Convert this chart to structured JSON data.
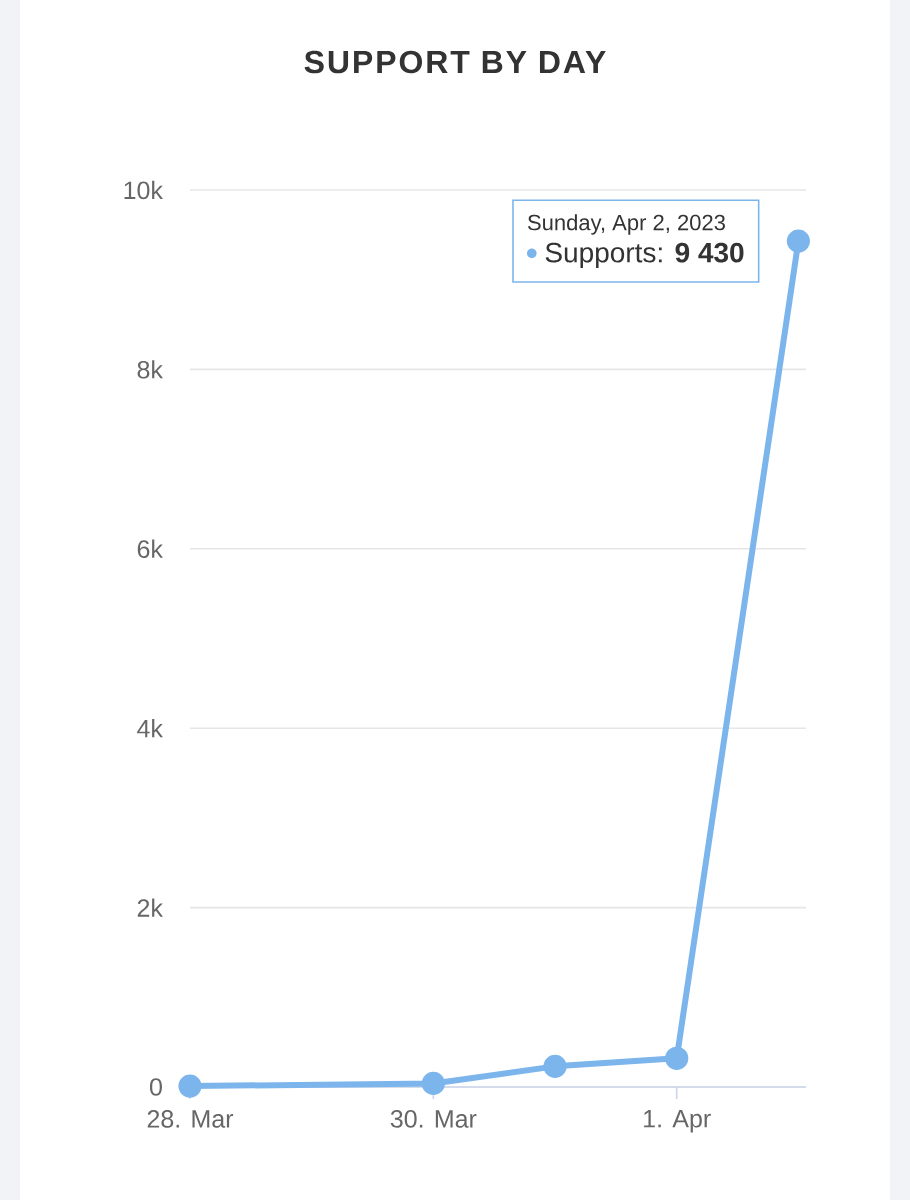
{
  "chart_data": {
    "type": "line",
    "title": "SUPPORT BY DAY",
    "x": [
      "2023-03-28",
      "2023-03-30",
      "2023-03-31",
      "2023-04-01",
      "2023-04-02"
    ],
    "series": [
      {
        "color": "#7cb5ec",
        "values": [
          10,
          40,
          230,
          320,
          9430
        ]
      }
    ],
    "xlim": [
      "2023-03-28",
      "2023-04-02T01:30"
    ],
    "xticks": [
      {
        "value": "2023-03-28",
        "label": "28. Mar"
      },
      {
        "value": "2023-03-30",
        "label": "30. Mar"
      },
      {
        "value": "2023-04-01",
        "label": "1. Apr"
      }
    ],
    "ylim": [
      0,
      10000
    ],
    "yticks": [
      {
        "value": 0,
        "label": "0"
      },
      {
        "value": 2000,
        "label": "2k"
      },
      {
        "value": 4000,
        "label": "4k"
      },
      {
        "value": 6000,
        "label": "6k"
      },
      {
        "value": 8000,
        "label": "8k"
      },
      {
        "value": 10000,
        "label": "10k"
      }
    ],
    "grid": "y",
    "marker": "circle",
    "line_style": "solid",
    "annotations": [
      "Sunday, Apr 2, 2023",
      "Supports: **9 430**"
    ]
  }
}
